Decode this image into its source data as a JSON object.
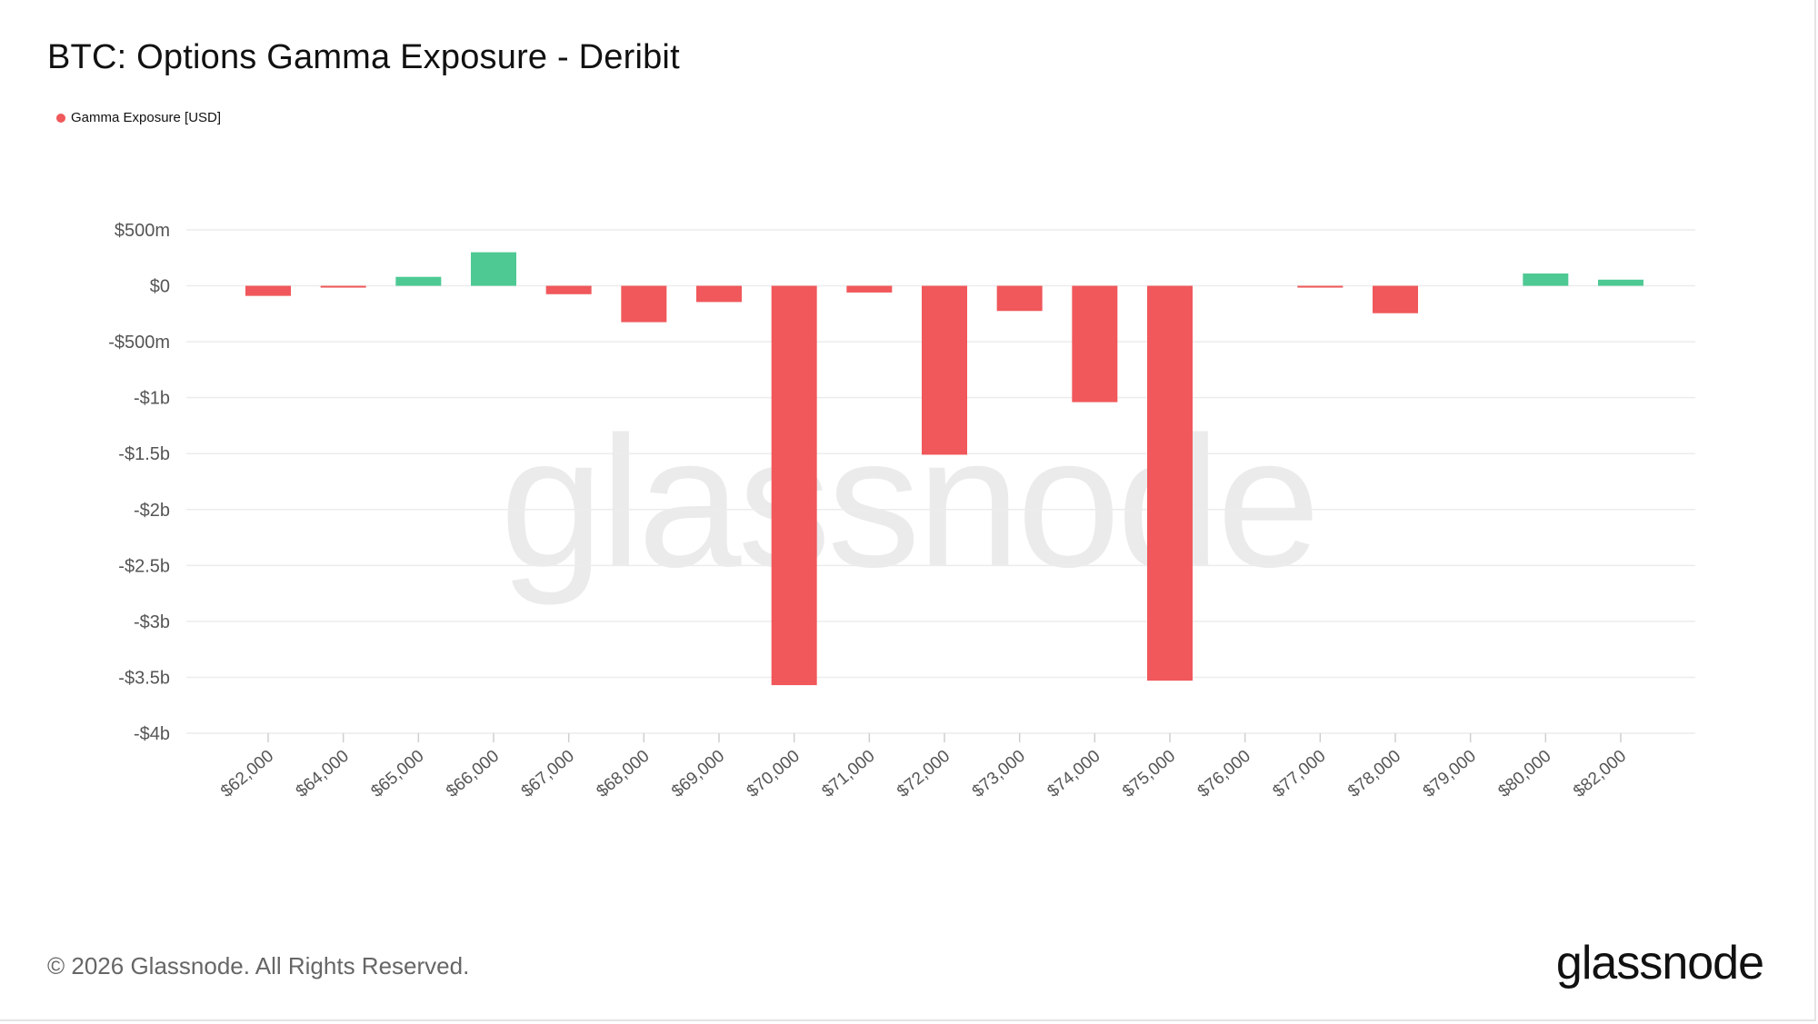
{
  "colors": {
    "negative": "#f0585b",
    "positive": "#4ec994",
    "grid": "#ececec",
    "axis_text": "#555555"
  },
  "watermark": "glassnode",
  "footer": {
    "copyright": "© 2026 Glassnode. All Rights Reserved.",
    "logo": "glassnode"
  },
  "chart_data": {
    "type": "bar",
    "title": "BTC: Options Gamma Exposure - Deribit",
    "legend": [
      {
        "name": "Gamma Exposure [USD]",
        "color": "#f0585b"
      }
    ],
    "categories": [
      "$62,000",
      "$64,000",
      "$65,000",
      "$66,000",
      "$67,000",
      "$68,000",
      "$69,000",
      "$70,000",
      "$71,000",
      "$72,000",
      "$73,000",
      "$74,000",
      "$75,000",
      "$76,000",
      "$77,000",
      "$78,000",
      "$79,000",
      "$80,000",
      "$82,000"
    ],
    "series": [
      {
        "name": "Gamma Exposure [USD]",
        "values": [
          -90000000,
          -10000000,
          80000000,
          300000000,
          -75000000,
          -325000000,
          -145000000,
          -3570000000,
          -60000000,
          -1510000000,
          -225000000,
          -1040000000,
          -3530000000,
          0,
          -10000000,
          -245000000,
          0,
          110000000,
          55000000
        ]
      }
    ],
    "y_ticks": [
      {
        "value": 500000000,
        "label": "$500m"
      },
      {
        "value": 0,
        "label": "$0"
      },
      {
        "value": -500000000,
        "label": "-$500m"
      },
      {
        "value": -1000000000,
        "label": "-$1b"
      },
      {
        "value": -1500000000,
        "label": "-$1.5b"
      },
      {
        "value": -2000000000,
        "label": "-$2b"
      },
      {
        "value": -2500000000,
        "label": "-$2.5b"
      },
      {
        "value": -3000000000,
        "label": "-$3b"
      },
      {
        "value": -3500000000,
        "label": "-$3.5b"
      },
      {
        "value": -4000000000,
        "label": "-$4b"
      }
    ],
    "ylim": [
      -4000000000,
      500000000
    ],
    "xlabel": "",
    "ylabel": "",
    "grid": true,
    "legend_position": "top-left"
  }
}
